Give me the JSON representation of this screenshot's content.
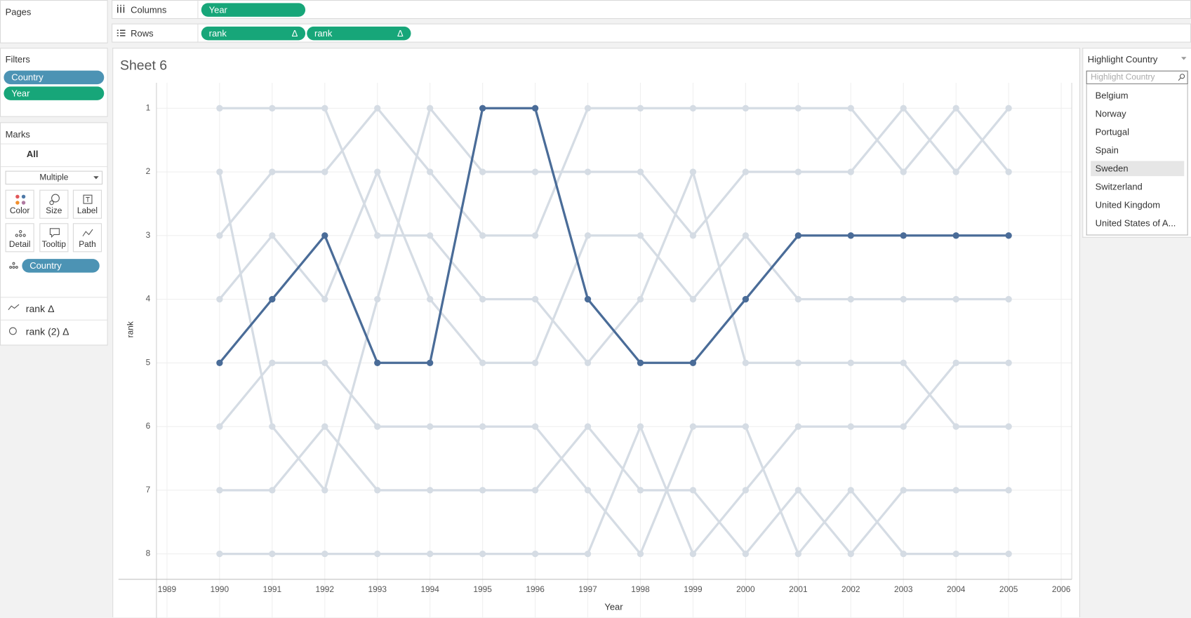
{
  "ui": {
    "pages_label": "Pages",
    "columns_label": "Columns",
    "columns_pills": [
      "Year"
    ],
    "rows_label": "Rows",
    "rows_pills": [
      {
        "text": "rank",
        "flag": "Δ"
      },
      {
        "text": "rank",
        "flag": "Δ"
      }
    ],
    "filters_label": "Filters",
    "filters": [
      "Country",
      "Year"
    ],
    "marks_label": "Marks",
    "marks_all": "All",
    "mark_type": "Multiple",
    "mark_buttons": [
      "Color",
      "Size",
      "Label",
      "Detail",
      "Tooltip",
      "Path"
    ],
    "detail_pill": "Country",
    "measures": [
      "rank Δ",
      "rank (2) Δ"
    ],
    "highlight": {
      "title": "Highlight Country",
      "placeholder": "Highlight Country",
      "items": [
        "Belgium",
        "Norway",
        "Portugal",
        "Spain",
        "Sweden",
        "Switzerland",
        "United Kingdom",
        "United States of A..."
      ],
      "selected": 4
    }
  },
  "chart_data": {
    "type": "line",
    "title": "Sheet 6",
    "x_label": "Year",
    "y_label": "rank",
    "x": [
      1990,
      1991,
      1992,
      1993,
      1994,
      1995,
      1996,
      1997,
      1998,
      1999,
      2000,
      2001,
      2002,
      2003,
      2004,
      2005
    ],
    "xlim": [
      1988.8,
      2006.2
    ],
    "xticks": [
      1989,
      1990,
      1991,
      1992,
      1993,
      1994,
      1995,
      1996,
      1997,
      1998,
      1999,
      2000,
      2001,
      2002,
      2003,
      2004,
      2005,
      2006
    ],
    "ylim": [
      8.4,
      0.6
    ],
    "yticks": [
      1,
      2,
      3,
      4,
      5,
      6,
      7,
      8
    ],
    "grid": true,
    "markers": true,
    "series": [
      {
        "color": "#d5dce4",
        "values": [
          1,
          1,
          1,
          3,
          3,
          4,
          4,
          5,
          4,
          2,
          5,
          5,
          5,
          5,
          6,
          6
        ]
      },
      {
        "color": "#d5dce4",
        "values": [
          2,
          6,
          7,
          4,
          1,
          2,
          2,
          2,
          2,
          3,
          2,
          2,
          2,
          1,
          2,
          1
        ]
      },
      {
        "color": "#d5dce4",
        "values": [
          3,
          2,
          2,
          1,
          2,
          3,
          3,
          1,
          1,
          1,
          1,
          1,
          1,
          2,
          1,
          2
        ]
      },
      {
        "color": "#d5dce4",
        "values": [
          4,
          3,
          4,
          2,
          4,
          5,
          5,
          3,
          3,
          4,
          3,
          4,
          4,
          4,
          4,
          4
        ]
      },
      {
        "color": "#d5dce4",
        "values": [
          6,
          5,
          5,
          6,
          6,
          6,
          6,
          7,
          8,
          6,
          6,
          8,
          7,
          8,
          8,
          8
        ]
      },
      {
        "color": "#d5dce4",
        "values": [
          7,
          7,
          6,
          7,
          7,
          7,
          7,
          6,
          7,
          7,
          8,
          7,
          8,
          7,
          7,
          7
        ]
      },
      {
        "color": "#d5dce4",
        "values": [
          8,
          8,
          8,
          8,
          8,
          8,
          8,
          8,
          6,
          8,
          7,
          6,
          6,
          6,
          5,
          5
        ]
      },
      {
        "color": "#4a6c98",
        "values": [
          5,
          4,
          3,
          5,
          5,
          1,
          1,
          4,
          5,
          5,
          4,
          3,
          3,
          3,
          3,
          3
        ]
      }
    ]
  }
}
